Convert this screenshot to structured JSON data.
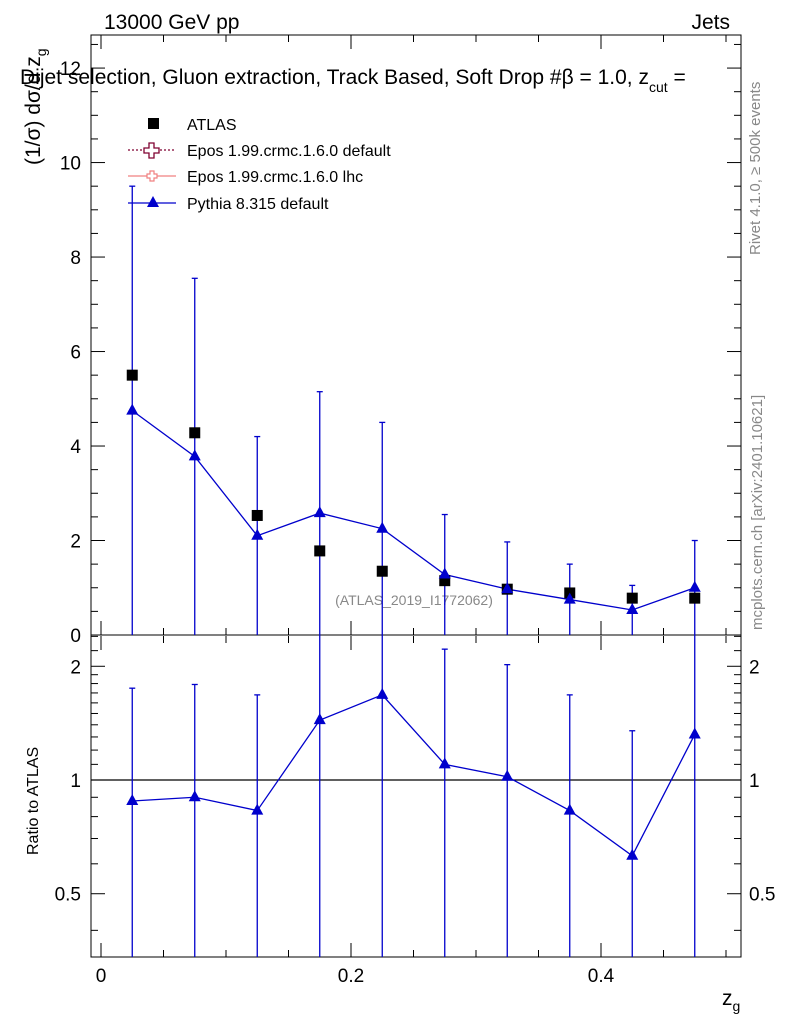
{
  "header": {
    "left": "13000 GeV pp",
    "right": "Jets",
    "title": "Dijet selection, Gluon extraction, Track Based, Soft Drop #β = 1.0, z",
    "title_sub": "cut",
    "title_tail": " ="
  },
  "side": {
    "rivet": "Rivet 4.1.0, ≥ 500k events",
    "mcplots": "mcplots.cern.ch [arXiv:2401.10621]"
  },
  "watermark": "(ATLAS_2019_I1772062)",
  "axes": {
    "ylabel_main": "(1/σ) dσ/d z",
    "ylabel_main_sub": "g",
    "ylabel_ratio": "Ratio to ATLAS",
    "xlabel": "z",
    "xlabel_sub": "g"
  },
  "legend": [
    {
      "label": "ATLAS",
      "color": "#000000",
      "marker": "square"
    },
    {
      "label": "Epos 1.99.crmc.1.6.0 default",
      "color": "#7f0030",
      "marker": "open-cross"
    },
    {
      "label": "Epos 1.99.crmc.1.6.0 lhc",
      "color": "#f08080",
      "marker": "open-cross"
    },
    {
      "label": "Pythia 8.315 default",
      "color": "#0000cc",
      "marker": "triangle"
    }
  ],
  "chart_data": {
    "type": "scatter",
    "x": [
      0.025,
      0.075,
      0.125,
      0.175,
      0.225,
      0.275,
      0.325,
      0.375,
      0.425,
      0.475
    ],
    "xlim": [
      -0.008,
      0.512
    ],
    "main": {
      "ylim": [
        0,
        12.7
      ],
      "yticks": [
        0,
        2,
        4,
        6,
        8,
        10,
        12
      ],
      "atlas": [
        5.5,
        4.28,
        2.53,
        1.78,
        1.35,
        1.15,
        0.97,
        0.89,
        0.78,
        0.78
      ],
      "pythia": [
        4.75,
        3.78,
        2.1,
        2.58,
        2.25,
        1.28,
        0.97,
        0.75,
        0.53,
        1.0
      ],
      "pythia_err_hi": [
        9.5,
        7.55,
        4.2,
        5.15,
        4.5,
        2.55,
        1.97,
        1.5,
        1.05,
        2.0
      ],
      "pythia_err_lo": [
        0,
        0,
        0,
        0,
        0,
        0,
        0,
        0,
        0,
        0
      ]
    },
    "ratio": {
      "ylim": [
        0.34,
        2.42
      ],
      "yticks": [
        0.5,
        1,
        2
      ],
      "ytick_labels": [
        "0.5",
        "1",
        "2"
      ],
      "pythia": [
        0.88,
        0.9,
        0.83,
        1.44,
        1.68,
        1.1,
        1.02,
        0.83,
        0.63,
        1.32
      ],
      "err_hi": [
        1.75,
        1.79,
        1.68,
        2.9,
        3.4,
        2.22,
        2.02,
        1.68,
        1.35,
        2.6
      ],
      "err_lo": [
        0.3,
        0.3,
        0.3,
        0.3,
        0.3,
        0.3,
        0.3,
        0.3,
        0.3,
        0.3
      ]
    },
    "xticks": [
      0,
      0.2,
      0.4
    ],
    "xtick_labels": [
      "0",
      "0.2",
      "0.4"
    ]
  }
}
